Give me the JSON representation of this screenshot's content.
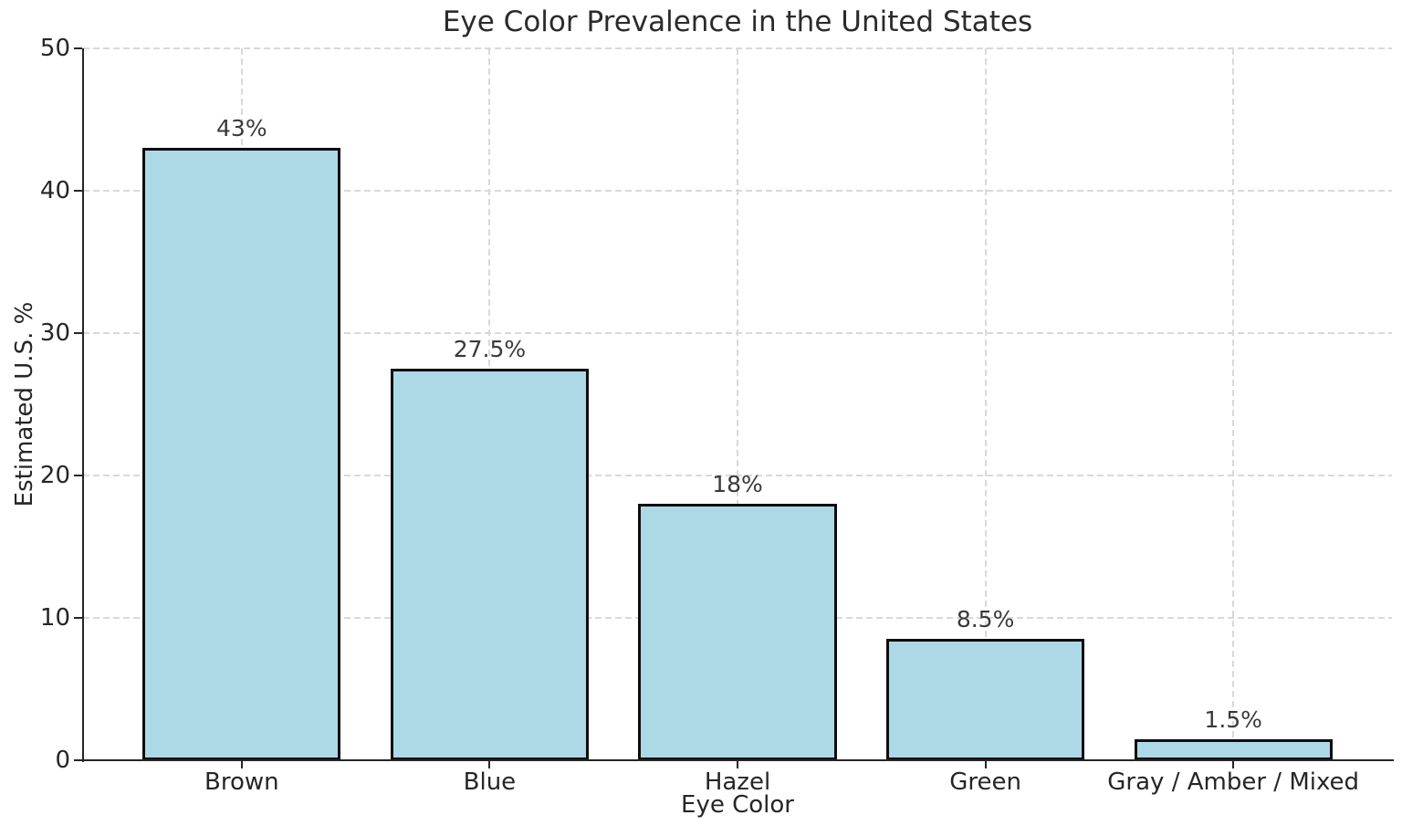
{
  "chart_data": {
    "type": "bar",
    "title": "Eye Color Prevalence in the United States",
    "xlabel": "Eye Color",
    "ylabel": "Estimated U.S. %",
    "categories": [
      "Brown",
      "Blue",
      "Hazel",
      "Green",
      "Gray / Amber / Mixed"
    ],
    "values": [
      43,
      27.5,
      18,
      8.5,
      1.5
    ],
    "bar_labels": [
      "43%",
      "27.5%",
      "18%",
      "8.5%",
      "1.5%"
    ],
    "ylim": [
      0,
      50
    ],
    "yticks": [
      0,
      10,
      20,
      30,
      40,
      50
    ],
    "ytick_labels": [
      "0",
      "10",
      "20",
      "30",
      "40",
      "50"
    ],
    "bar_width_fraction": 0.8,
    "grid": "dashed-both-axes",
    "legend": "none",
    "colors": {
      "bar_fill": "#ADD8E6",
      "bar_edge": "#0d0d0d",
      "grid_line": "#d9d9d9",
      "spine": "#262626",
      "text": "#262626",
      "background": "#ffffff"
    }
  }
}
